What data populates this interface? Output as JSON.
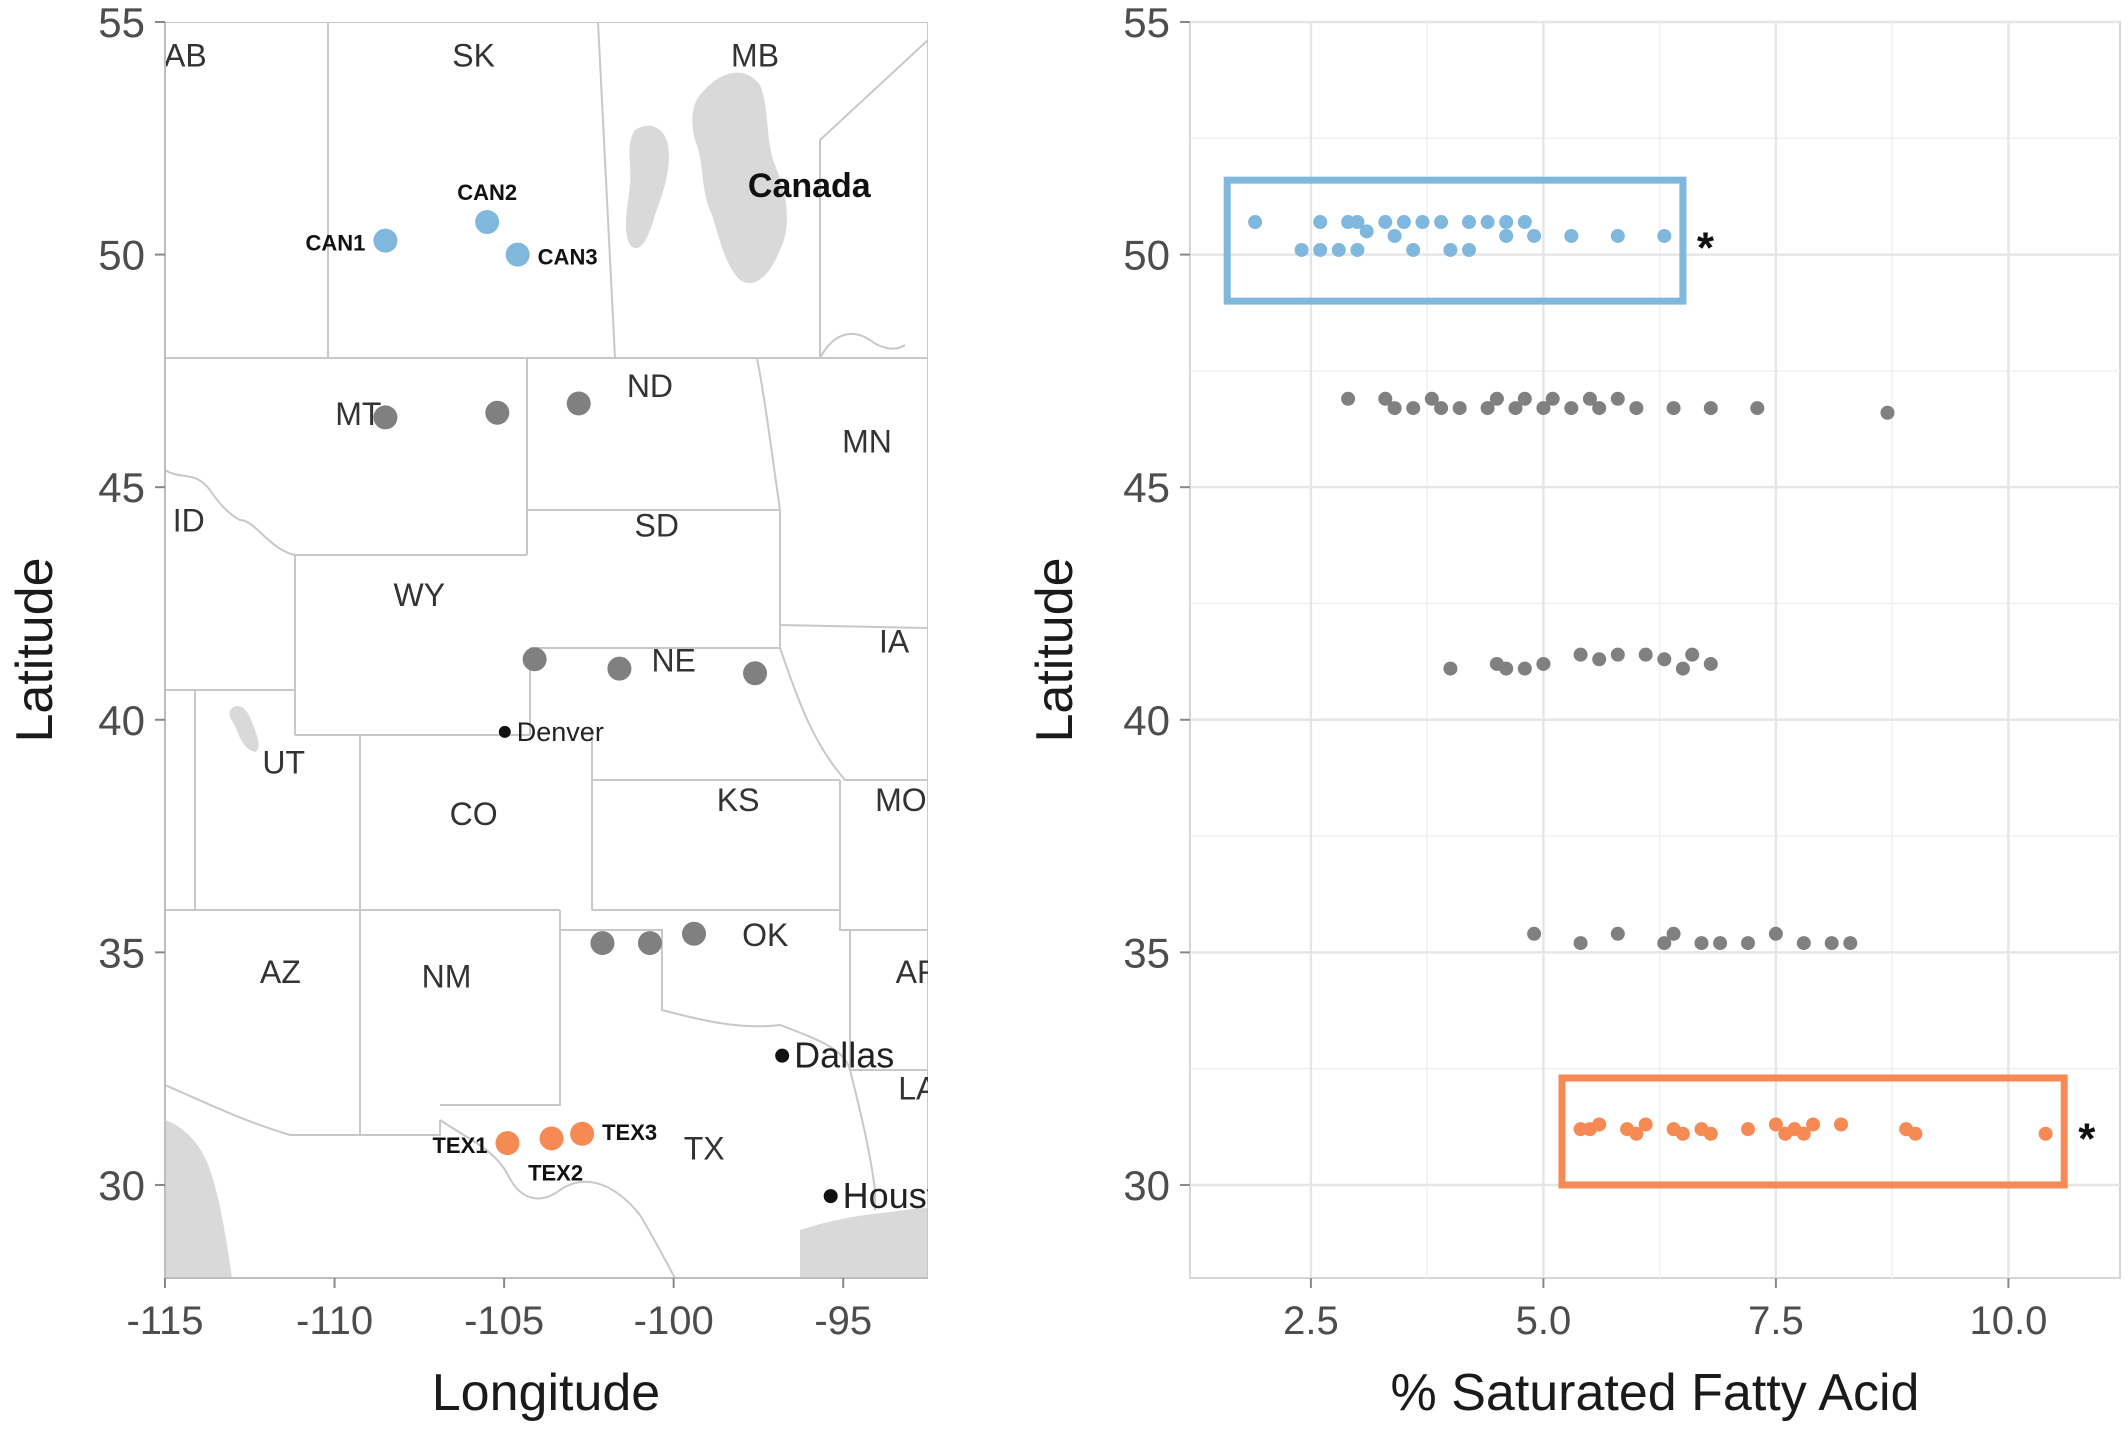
{
  "colors": {
    "canada": "#7fb7dd",
    "texas": "#f58a55",
    "middle": "#808080",
    "border": "#c8c8c8",
    "water": "#d9d9d9",
    "grid": "#e6e6e6",
    "axis_text": "#4d4d4d"
  },
  "chart_data": [
    {
      "type": "map",
      "xlabel": "Longitude",
      "ylabel": "Latitude",
      "xlim": [
        -115,
        -92.5
      ],
      "ylim": [
        28,
        55
      ],
      "xticks": [
        -115,
        -110,
        -105,
        -100,
        -95
      ],
      "yticks": [
        30,
        35,
        40,
        45,
        50,
        55
      ],
      "xtick_labels": [
        "-115",
        "-110",
        "-105",
        "-100",
        "-95"
      ],
      "ytick_labels": [
        "30",
        "35",
        "40",
        "45",
        "50",
        "55"
      ],
      "region_labels": [
        {
          "text": "AB",
          "lon": -114.4,
          "lat": 54.3
        },
        {
          "text": "SK",
          "lon": -105.9,
          "lat": 54.3
        },
        {
          "text": "MB",
          "lon": -97.6,
          "lat": 54.3
        },
        {
          "text": "Canada",
          "lon": -96.0,
          "lat": 51.5,
          "bold": true
        },
        {
          "text": "MT",
          "lon": -109.3,
          "lat": 46.6
        },
        {
          "text": "ND",
          "lon": -100.7,
          "lat": 47.2
        },
        {
          "text": "MN",
          "lon": -94.3,
          "lat": 46.0
        },
        {
          "text": "ID",
          "lon": -114.3,
          "lat": 44.3
        },
        {
          "text": "SD",
          "lon": -100.5,
          "lat": 44.2
        },
        {
          "text": "WY",
          "lon": -107.5,
          "lat": 42.7
        },
        {
          "text": "IA",
          "lon": -93.5,
          "lat": 41.7
        },
        {
          "text": "NE",
          "lon": -100.0,
          "lat": 41.3
        },
        {
          "text": "UT",
          "lon": -111.5,
          "lat": 39.1
        },
        {
          "text": "CO",
          "lon": -105.9,
          "lat": 38.0
        },
        {
          "text": "KS",
          "lon": -98.1,
          "lat": 38.3
        },
        {
          "text": "MO",
          "lon": -93.3,
          "lat": 38.3
        },
        {
          "text": "AZ",
          "lon": -111.6,
          "lat": 34.6
        },
        {
          "text": "NM",
          "lon": -106.7,
          "lat": 34.5
        },
        {
          "text": "OK",
          "lon": -97.3,
          "lat": 35.4
        },
        {
          "text": "AR",
          "lon": -92.8,
          "lat": 34.6
        },
        {
          "text": "LA",
          "lon": -92.8,
          "lat": 32.1
        },
        {
          "text": "TX",
          "lon": -99.1,
          "lat": 30.8
        }
      ],
      "cities": [
        {
          "name": "Denver",
          "lon": -104.98,
          "lat": 39.74
        },
        {
          "name": "Dallas",
          "lon": -96.8,
          "lat": 32.78
        },
        {
          "name": "Houston",
          "display": "Houst",
          "lon": -95.37,
          "lat": 29.76
        }
      ],
      "sites": [
        {
          "name": "CAN1",
          "lon": -108.5,
          "lat": 50.3,
          "group": "canada"
        },
        {
          "name": "CAN2",
          "lon": -105.5,
          "lat": 50.7,
          "group": "canada"
        },
        {
          "name": "CAN3",
          "lon": -104.6,
          "lat": 50.0,
          "group": "canada"
        },
        {
          "name": "",
          "lon": -108.5,
          "lat": 46.5,
          "group": "middle"
        },
        {
          "name": "",
          "lon": -105.2,
          "lat": 46.6,
          "group": "middle"
        },
        {
          "name": "",
          "lon": -102.8,
          "lat": 46.8,
          "group": "middle"
        },
        {
          "name": "",
          "lon": -104.1,
          "lat": 41.3,
          "group": "middle"
        },
        {
          "name": "",
          "lon": -101.6,
          "lat": 41.1,
          "group": "middle"
        },
        {
          "name": "",
          "lon": -97.6,
          "lat": 41.0,
          "group": "middle"
        },
        {
          "name": "",
          "lon": -102.1,
          "lat": 35.2,
          "group": "middle"
        },
        {
          "name": "",
          "lon": -100.7,
          "lat": 35.2,
          "group": "middle"
        },
        {
          "name": "",
          "lon": -99.4,
          "lat": 35.4,
          "group": "middle"
        },
        {
          "name": "TEX1",
          "lon": -104.9,
          "lat": 30.9,
          "group": "texas"
        },
        {
          "name": "TEX2",
          "lon": -103.6,
          "lat": 31.0,
          "group": "texas"
        },
        {
          "name": "TEX3",
          "lon": -102.7,
          "lat": 31.1,
          "group": "texas"
        }
      ]
    },
    {
      "type": "scatter",
      "xlabel": "% Saturated Fatty Acid",
      "ylabel": "Latitude",
      "xlim": [
        1.2,
        11.2
      ],
      "ylim": [
        28,
        55
      ],
      "xticks": [
        2.5,
        5.0,
        7.5,
        10.0
      ],
      "yticks": [
        30,
        35,
        40,
        45,
        50,
        55
      ],
      "xtick_labels": [
        "2.5",
        "5.0",
        "7.5",
        "10.0"
      ],
      "ytick_labels": [
        "30",
        "35",
        "40",
        "45",
        "50",
        "55"
      ],
      "grid": true,
      "series": [
        {
          "group": "canada",
          "points": [
            [
              1.9,
              50.7
            ],
            [
              2.6,
              50.7
            ],
            [
              2.9,
              50.7
            ],
            [
              3.0,
              50.7
            ],
            [
              3.3,
              50.7
            ],
            [
              3.5,
              50.7
            ],
            [
              3.7,
              50.7
            ],
            [
              3.9,
              50.7
            ],
            [
              4.2,
              50.7
            ],
            [
              4.4,
              50.7
            ],
            [
              4.6,
              50.7
            ],
            [
              4.8,
              50.7
            ],
            [
              3.1,
              50.5
            ],
            [
              3.4,
              50.4
            ],
            [
              4.6,
              50.4
            ],
            [
              4.9,
              50.4
            ],
            [
              5.3,
              50.4
            ],
            [
              5.8,
              50.4
            ],
            [
              6.3,
              50.4
            ],
            [
              2.4,
              50.1
            ],
            [
              2.6,
              50.1
            ],
            [
              2.8,
              50.1
            ],
            [
              3.0,
              50.1
            ],
            [
              3.6,
              50.1
            ],
            [
              4.0,
              50.1
            ],
            [
              4.2,
              50.1
            ]
          ]
        },
        {
          "group": "middle",
          "points": [
            [
              2.9,
              46.9
            ],
            [
              3.3,
              46.9
            ],
            [
              3.8,
              46.9
            ],
            [
              4.5,
              46.9
            ],
            [
              4.8,
              46.9
            ],
            [
              5.1,
              46.9
            ],
            [
              5.5,
              46.9
            ],
            [
              5.8,
              46.9
            ],
            [
              3.4,
              46.7
            ],
            [
              3.6,
              46.7
            ],
            [
              3.9,
              46.7
            ],
            [
              4.1,
              46.7
            ],
            [
              4.4,
              46.7
            ],
            [
              4.7,
              46.7
            ],
            [
              5.0,
              46.7
            ],
            [
              5.3,
              46.7
            ],
            [
              5.6,
              46.7
            ],
            [
              6.0,
              46.7
            ],
            [
              6.4,
              46.7
            ],
            [
              6.8,
              46.7
            ],
            [
              7.3,
              46.7
            ],
            [
              8.7,
              46.6
            ],
            [
              4.0,
              41.1
            ],
            [
              4.5,
              41.2
            ],
            [
              4.8,
              41.1
            ],
            [
              5.0,
              41.2
            ],
            [
              5.4,
              41.4
            ],
            [
              5.6,
              41.3
            ],
            [
              5.8,
              41.4
            ],
            [
              6.1,
              41.4
            ],
            [
              6.3,
              41.3
            ],
            [
              6.6,
              41.4
            ],
            [
              6.8,
              41.2
            ],
            [
              4.6,
              41.1
            ],
            [
              6.5,
              41.1
            ],
            [
              4.9,
              35.4
            ],
            [
              5.4,
              35.2
            ],
            [
              5.8,
              35.4
            ],
            [
              6.3,
              35.2
            ],
            [
              6.4,
              35.4
            ],
            [
              6.7,
              35.2
            ],
            [
              7.2,
              35.2
            ],
            [
              7.5,
              35.4
            ],
            [
              7.8,
              35.2
            ],
            [
              8.1,
              35.2
            ],
            [
              8.3,
              35.2
            ],
            [
              6.9,
              35.2
            ]
          ]
        },
        {
          "group": "texas",
          "points": [
            [
              5.4,
              31.2
            ],
            [
              5.6,
              31.3
            ],
            [
              5.9,
              31.2
            ],
            [
              6.1,
              31.3
            ],
            [
              6.4,
              31.2
            ],
            [
              6.5,
              31.1
            ],
            [
              6.8,
              31.1
            ],
            [
              7.2,
              31.2
            ],
            [
              7.5,
              31.3
            ],
            [
              7.7,
              31.2
            ],
            [
              7.8,
              31.1
            ],
            [
              7.9,
              31.3
            ],
            [
              8.2,
              31.3
            ],
            [
              5.5,
              31.2
            ],
            [
              6.0,
              31.1
            ],
            [
              6.7,
              31.2
            ],
            [
              7.6,
              31.1
            ],
            [
              8.9,
              31.2
            ],
            [
              9.0,
              31.1
            ],
            [
              10.4,
              31.1
            ]
          ]
        }
      ],
      "highlight_boxes": [
        {
          "group": "canada",
          "xmin": 1.6,
          "xmax": 6.5,
          "ymin": 49.0,
          "ymax": 51.6,
          "marker": "*"
        },
        {
          "group": "texas",
          "xmin": 5.2,
          "xmax": 10.6,
          "ymin": 30.0,
          "ymax": 32.3,
          "marker": "*"
        }
      ]
    }
  ]
}
